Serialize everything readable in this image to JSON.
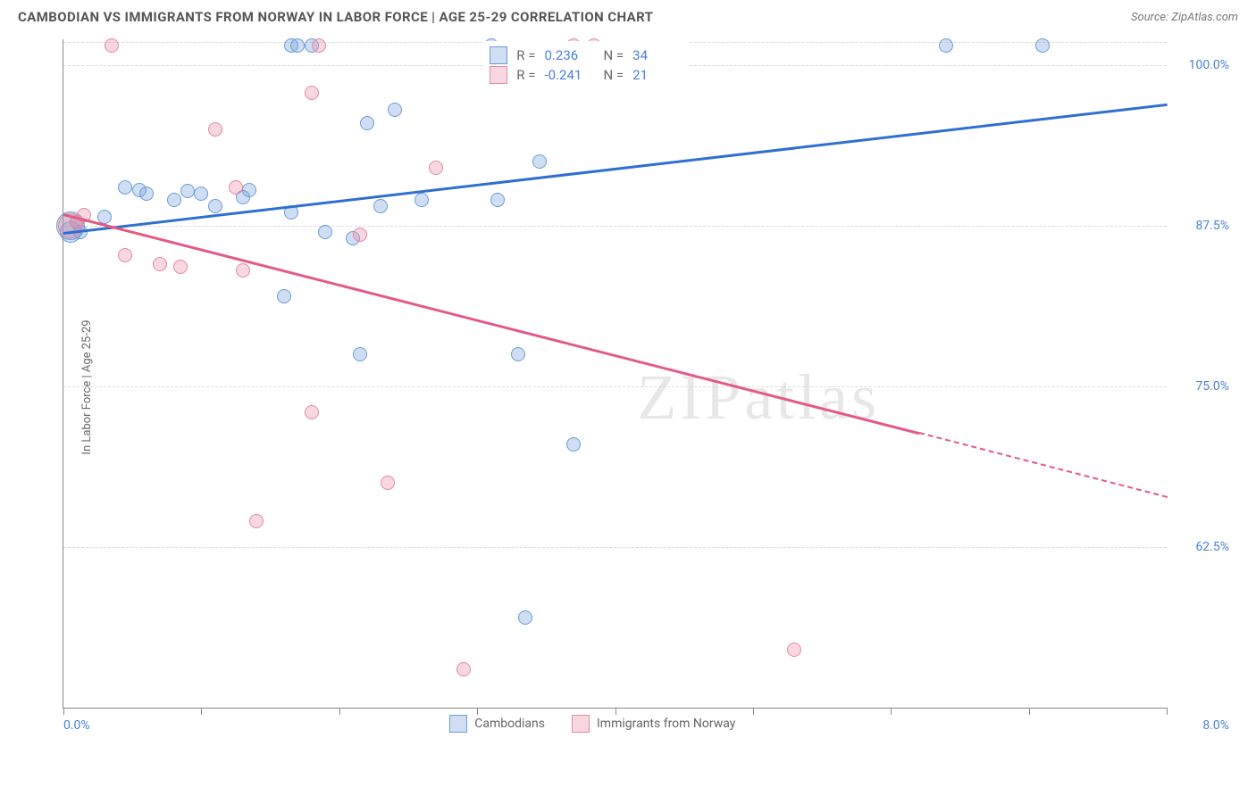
{
  "header": {
    "title": "CAMBODIAN VS IMMIGRANTS FROM NORWAY IN LABOR FORCE | AGE 25-29 CORRELATION CHART",
    "source": "Source: ZipAtlas.com"
  },
  "chart": {
    "type": "scatter",
    "y_axis_title": "In Labor Force | Age 25-29",
    "xlim": [
      0.0,
      8.0
    ],
    "ylim": [
      50.0,
      102.0
    ],
    "x_min_label": "0.0%",
    "x_max_label": "8.0%",
    "x_ticks": [
      0,
      1,
      2,
      3,
      4,
      5,
      6,
      7,
      8
    ],
    "y_ticks": [
      {
        "v": 62.5,
        "label": "62.5%"
      },
      {
        "v": 75.0,
        "label": "75.0%"
      },
      {
        "v": 87.5,
        "label": "87.5%"
      },
      {
        "v": 100.0,
        "label": "100.0%"
      }
    ],
    "grid_color": "#d9d9d9",
    "axis_color": "#888888",
    "background_color": "#ffffff",
    "label_color": "#4a7fd6",
    "series": [
      {
        "name": "Cambodians",
        "fill": "rgba(120,160,220,0.35)",
        "stroke": "#6a9bd8",
        "marker_r": 8,
        "trend_color": "#2e6fd0",
        "trend": {
          "x1": 0.0,
          "y1": 87.0,
          "x2": 8.0,
          "y2": 97.0
        },
        "R": "0.236",
        "N": "34",
        "points": [
          {
            "x": 0.05,
            "y": 87.5,
            "r": 16
          },
          {
            "x": 0.05,
            "y": 87.0,
            "r": 12
          },
          {
            "x": 0.1,
            "y": 87.8
          },
          {
            "x": 0.12,
            "y": 87.0
          },
          {
            "x": 0.3,
            "y": 88.2
          },
          {
            "x": 0.45,
            "y": 90.5
          },
          {
            "x": 0.55,
            "y": 90.3
          },
          {
            "x": 0.6,
            "y": 90.0
          },
          {
            "x": 0.8,
            "y": 89.5
          },
          {
            "x": 0.9,
            "y": 90.2
          },
          {
            "x": 1.0,
            "y": 90.0
          },
          {
            "x": 1.1,
            "y": 89.0
          },
          {
            "x": 1.3,
            "y": 89.7
          },
          {
            "x": 1.35,
            "y": 90.3
          },
          {
            "x": 1.6,
            "y": 82.0
          },
          {
            "x": 1.65,
            "y": 101.5
          },
          {
            "x": 1.7,
            "y": 101.5
          },
          {
            "x": 1.8,
            "y": 101.5
          },
          {
            "x": 1.65,
            "y": 88.5
          },
          {
            "x": 1.9,
            "y": 87.0
          },
          {
            "x": 2.15,
            "y": 77.5
          },
          {
            "x": 2.1,
            "y": 86.5
          },
          {
            "x": 2.2,
            "y": 95.5
          },
          {
            "x": 2.3,
            "y": 89.0
          },
          {
            "x": 2.4,
            "y": 96.5
          },
          {
            "x": 2.6,
            "y": 89.5
          },
          {
            "x": 3.1,
            "y": 101.5
          },
          {
            "x": 3.15,
            "y": 89.5
          },
          {
            "x": 3.3,
            "y": 77.5
          },
          {
            "x": 3.35,
            "y": 57.0
          },
          {
            "x": 3.45,
            "y": 92.5
          },
          {
            "x": 3.7,
            "y": 70.5
          },
          {
            "x": 6.4,
            "y": 101.5
          },
          {
            "x": 7.1,
            "y": 101.5
          }
        ]
      },
      {
        "name": "Immigrants from Norway",
        "fill": "rgba(235,140,165,0.35)",
        "stroke": "#e089a2",
        "marker_r": 8,
        "trend_color": "#e35a84",
        "trend": {
          "x1": 0.0,
          "y1": 88.5,
          "x2": 6.2,
          "y2": 71.5
        },
        "trend_dash": {
          "x1": 6.2,
          "y1": 71.5,
          "x2": 8.0,
          "y2": 66.5
        },
        "R": "-0.241",
        "N": "21",
        "points": [
          {
            "x": 0.05,
            "y": 87.5,
            "r": 14
          },
          {
            "x": 0.1,
            "y": 87.8
          },
          {
            "x": 0.15,
            "y": 88.3
          },
          {
            "x": 0.35,
            "y": 101.5
          },
          {
            "x": 0.45,
            "y": 85.2
          },
          {
            "x": 0.7,
            "y": 84.5
          },
          {
            "x": 0.85,
            "y": 84.3
          },
          {
            "x": 1.1,
            "y": 95.0
          },
          {
            "x": 1.25,
            "y": 90.5
          },
          {
            "x": 1.3,
            "y": 84.0
          },
          {
            "x": 1.4,
            "y": 64.5
          },
          {
            "x": 1.8,
            "y": 97.8
          },
          {
            "x": 1.85,
            "y": 101.5
          },
          {
            "x": 1.8,
            "y": 73.0
          },
          {
            "x": 2.15,
            "y": 86.8
          },
          {
            "x": 2.35,
            "y": 67.5
          },
          {
            "x": 2.7,
            "y": 92.0
          },
          {
            "x": 2.9,
            "y": 53.0
          },
          {
            "x": 3.7,
            "y": 101.5
          },
          {
            "x": 3.85,
            "y": 101.5
          },
          {
            "x": 5.3,
            "y": 54.5
          }
        ]
      }
    ],
    "legend_top_label_R": "R =",
    "legend_top_label_N": "N =",
    "watermark": "ZIPatlas"
  },
  "bottom_legend": {
    "items": [
      "Cambodians",
      "Immigrants from Norway"
    ]
  }
}
